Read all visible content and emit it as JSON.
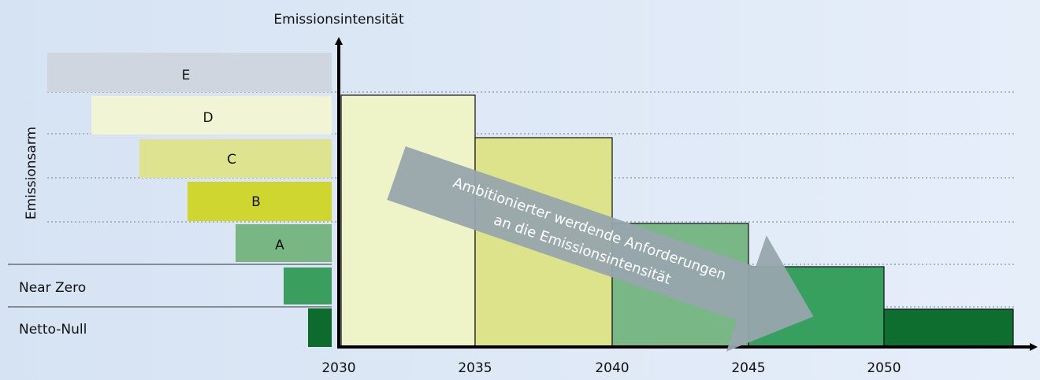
{
  "y_axis_label": "Emissionsintensität",
  "side_label": "Emissionsarm",
  "classes": [
    "E",
    "D",
    "C",
    "B",
    "A",
    "Near Zero",
    "Netto-Null"
  ],
  "x_ticks": [
    "2030",
    "2035",
    "2040",
    "2045",
    "2050"
  ],
  "arrow_text": [
    "Ambitionierter werdende Anforderungen",
    "an die Emissionsintensität"
  ]
}
